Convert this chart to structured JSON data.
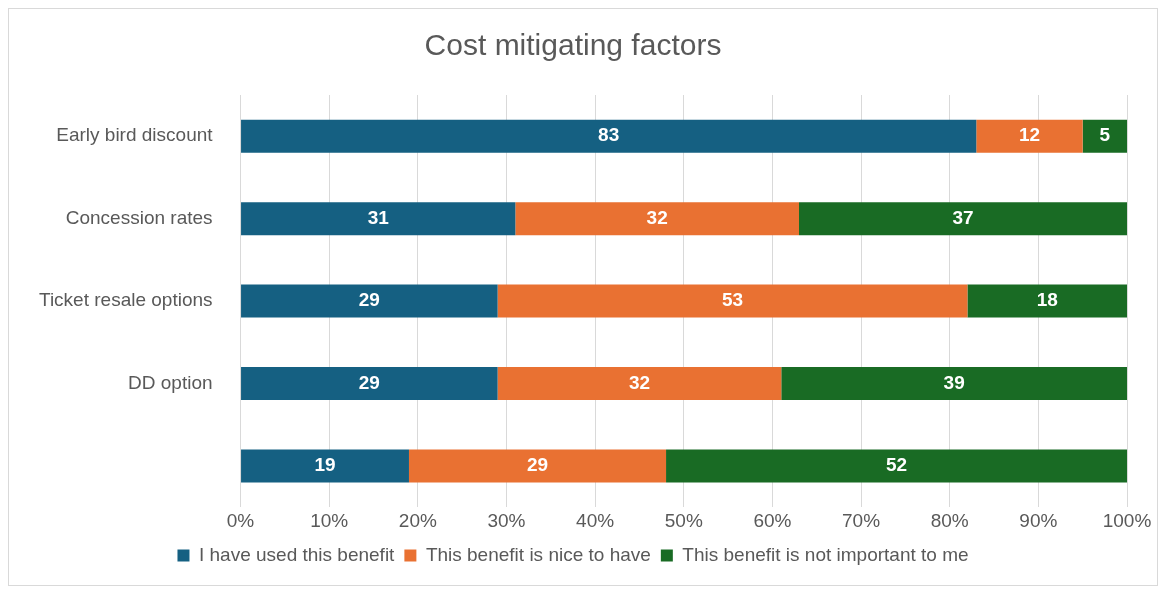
{
  "chart_data": {
    "type": "bar",
    "title": "Cost mitigating factors",
    "orientation": "horizontal",
    "stacked": true,
    "categories": [
      "Early bird discount",
      "Concession rates",
      "Ticket resale options",
      "DD option",
      null
    ],
    "series": [
      {
        "name": "I have used this benefit",
        "color": "#156082",
        "values": [
          83,
          31,
          29,
          29,
          19
        ]
      },
      {
        "name": "This benefit is nice to have",
        "color": "#e97132",
        "values": [
          12,
          32,
          53,
          32,
          29
        ]
      },
      {
        "name": "This benefit is not important to me",
        "color": "#196b24",
        "values": [
          5,
          37,
          18,
          39,
          52
        ]
      }
    ],
    "xlim": [
      0,
      100
    ],
    "xticks": [
      {
        "value": 0,
        "label": "0%"
      },
      {
        "value": 10,
        "label": "10%"
      },
      {
        "value": 20,
        "label": "20%"
      },
      {
        "value": 30,
        "label": "30%"
      },
      {
        "value": 40,
        "label": "40%"
      },
      {
        "value": 50,
        "label": "50%"
      },
      {
        "value": 60,
        "label": "60%"
      },
      {
        "value": 70,
        "label": "70%"
      },
      {
        "value": 80,
        "label": "80%"
      },
      {
        "value": 90,
        "label": "90%"
      },
      {
        "value": 100,
        "label": "100%"
      }
    ],
    "grid": "x",
    "legend": "bottom",
    "data_labels": true
  }
}
